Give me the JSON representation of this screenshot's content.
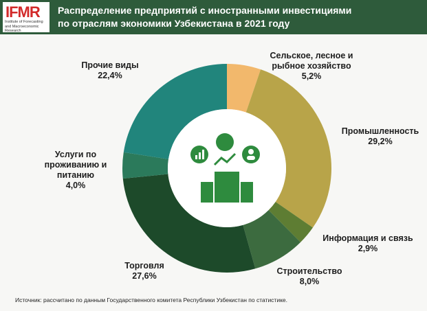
{
  "logo": {
    "main": "IFMR",
    "sub": "Institute of Forecasting and Macroeconomic Research"
  },
  "chart_data": {
    "type": "donut",
    "title": "Распределение предприятий с иностранными инвестициями по отраслям экономики Узбекистана в 2021 году",
    "categories": [
      "Сельское, лесное и рыбное хозяйство",
      "Промышленность",
      "Информация и связь",
      "Строительство",
      "Торговля",
      "Услуги по проживанию и питанию",
      "Прочие виды"
    ],
    "values": [
      5.2,
      29.2,
      2.9,
      8.0,
      27.6,
      4.0,
      22.4
    ],
    "value_labels": [
      "5,2%",
      "29,2%",
      "2,9%",
      "8,0%",
      "27,6%",
      "4,0%",
      "22,4%"
    ],
    "colors": [
      "#f2b86c",
      "#b8a449",
      "#5e7d33",
      "#3c6b3f",
      "#1d4a2a",
      "#2b7a5b",
      "#21857c"
    ]
  },
  "source": "Источник: рассчитано по данным Государственного комитета Республики Узбекистан по статистике."
}
